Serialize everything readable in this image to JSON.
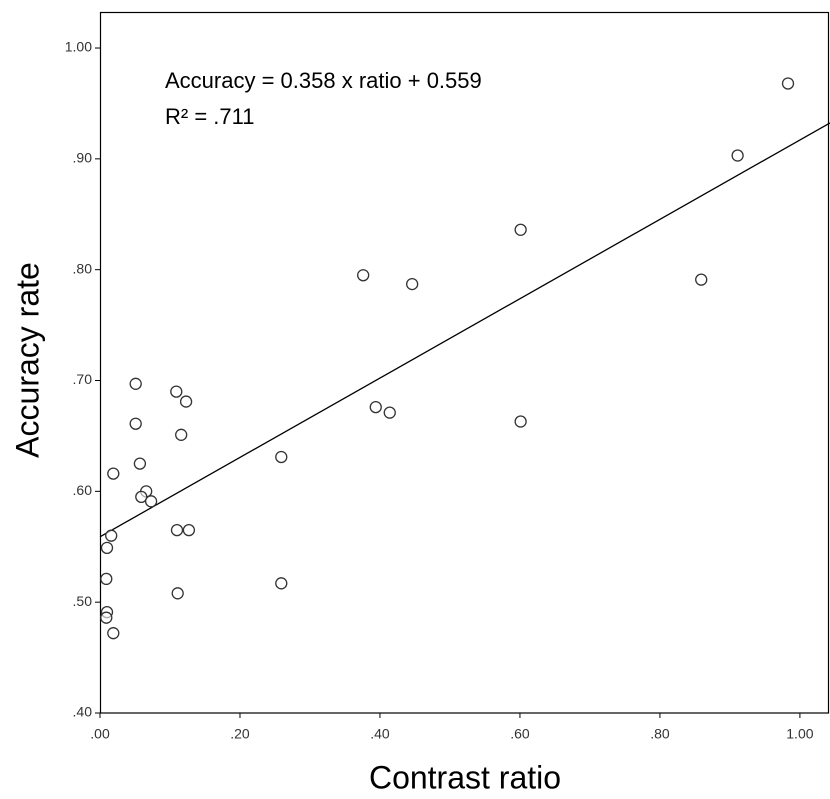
{
  "chart_data": {
    "type": "scatter",
    "x_label": "Contrast ratio",
    "y_label": "Accuracy rate",
    "annotations": [
      "Accuracy = 0.358 x ratio + 0.559",
      "R² = .711"
    ],
    "fit": {
      "slope": 0.358,
      "intercept": 0.559
    },
    "x": [
      0.983,
      0.911,
      0.601,
      0.859,
      0.376,
      0.446,
      0.601,
      0.394,
      0.414,
      0.259,
      0.259,
      0.051,
      0.109,
      0.123,
      0.051,
      0.116,
      0.057,
      0.019,
      0.066,
      0.059,
      0.073,
      0.11,
      0.127,
      0.016,
      0.01,
      0.009,
      0.01,
      0.009,
      0.019,
      0.111
    ],
    "values": [
      0.968,
      0.903,
      0.836,
      0.791,
      0.795,
      0.787,
      0.663,
      0.676,
      0.671,
      0.631,
      0.517,
      0.697,
      0.69,
      0.681,
      0.661,
      0.651,
      0.625,
      0.616,
      0.6,
      0.595,
      0.591,
      0.565,
      0.565,
      0.56,
      0.549,
      0.521,
      0.491,
      0.486,
      0.472,
      0.508
    ],
    "color": "#333333",
    "xlim": [
      0,
      1.043
    ],
    "ylim": [
      0.4,
      1.0325
    ],
    "xticks": [
      {
        "value": 0,
        "label": ".00"
      },
      {
        "value": 0.2,
        "label": ".20"
      },
      {
        "value": 0.4,
        "label": ".40"
      },
      {
        "value": 0.6,
        "label": ".60"
      },
      {
        "value": 0.8,
        "label": ".80"
      },
      {
        "value": 1,
        "label": "1.00"
      }
    ],
    "yticks": [
      {
        "value": 0.4,
        "label": ".40"
      },
      {
        "value": 0.5,
        "label": ".50"
      },
      {
        "value": 0.6,
        "label": ".60"
      },
      {
        "value": 0.7,
        "label": ".70"
      },
      {
        "value": 0.8,
        "label": ".80"
      },
      {
        "value": 0.9,
        "label": ".90"
      },
      {
        "value": 1,
        "label": "1.00"
      }
    ]
  }
}
